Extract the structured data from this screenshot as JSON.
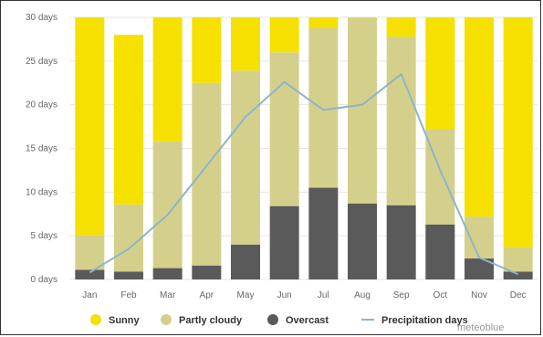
{
  "chart_data": {
    "type": "bar",
    "stacked": true,
    "categories": [
      "Jan",
      "Feb",
      "Mar",
      "Apr",
      "May",
      "Jun",
      "Jul",
      "Aug",
      "Sep",
      "Oct",
      "Nov",
      "Dec"
    ],
    "y_ticks": [
      "0 days",
      "5 days",
      "10 days",
      "15 days",
      "20 days",
      "25 days",
      "30 days"
    ],
    "ylim": [
      0,
      30
    ],
    "series": [
      {
        "name": "Overcast",
        "kind": "bar",
        "color": "#5a5a5a",
        "values": [
          1.1,
          0.9,
          1.3,
          1.6,
          4.0,
          8.4,
          10.5,
          8.7,
          8.5,
          6.3,
          2.4,
          0.9
        ]
      },
      {
        "name": "Partly cloudy",
        "kind": "bar",
        "color": "#d4d08c",
        "values": [
          4.0,
          7.7,
          14.5,
          20.9,
          19.9,
          17.6,
          18.3,
          21.2,
          19.3,
          10.9,
          4.8,
          2.8
        ]
      },
      {
        "name": "Sunny",
        "kind": "bar",
        "color": "#f5e000",
        "values": [
          24.9,
          19.4,
          14.2,
          7.5,
          6.1,
          4.0,
          1.2,
          0.1,
          2.2,
          12.8,
          22.8,
          26.3
        ]
      },
      {
        "name": "Precipitation days",
        "kind": "line",
        "color": "#8fb4c8",
        "values": [
          0.8,
          3.5,
          7.4,
          13.0,
          18.6,
          22.6,
          19.4,
          20.0,
          23.5,
          12.5,
          2.5,
          0.6
        ]
      }
    ],
    "legend_order": [
      "Sunny",
      "Partly cloudy",
      "Overcast",
      "Precipitation days"
    ],
    "legend_position": "bottom",
    "grid": true,
    "credit": "meteoblue"
  }
}
